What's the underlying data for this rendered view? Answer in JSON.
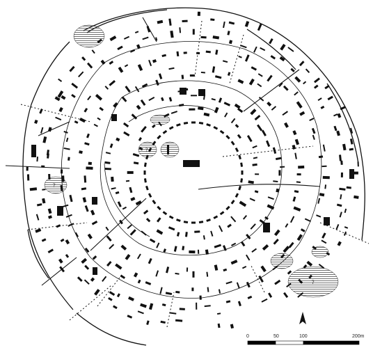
{
  "map": {
    "hatched_area_labels": [
      "?",
      "?",
      "?",
      "?"
    ],
    "north_arrow_icon": "north-arrow-icon",
    "scale_bar": {
      "labels": [
        "0",
        "50",
        "100",
        "200m"
      ],
      "ticks_m": [
        0,
        50,
        100,
        200
      ],
      "segment_fills": [
        "#000000",
        "#ffffff",
        "#000000"
      ]
    },
    "colors": {
      "ink": "#111111",
      "hatch": "#333333",
      "background": "#ffffff"
    }
  }
}
